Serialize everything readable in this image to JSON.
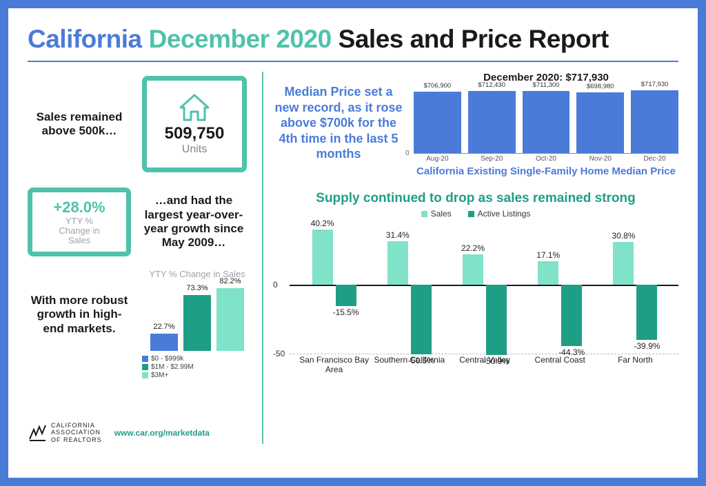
{
  "title": {
    "p1": "California",
    "p2": "December 2020",
    "p3": "Sales and Price Report",
    "c1": "#4a7bd9",
    "c2": "#4fc2ab",
    "c3": "#1a1a1a"
  },
  "left": {
    "sales_above_text": "Sales remained above 500k…",
    "units_value": "509,750",
    "units_label": "Units",
    "yty_pct": "+28.0%",
    "yty_label_1": "YTY %",
    "yty_label_2": "Change in",
    "yty_label_3": "Sales",
    "largest_growth_text": "…and had the largest year-over-year growth since May 2009…",
    "robust_text": "With more robust growth in high-end markets.",
    "yty_chart": {
      "title": "YTY % Change in Sales",
      "categories": [
        "$0 - $999k",
        "$1M - $2.99M",
        "$3M+"
      ],
      "values": [
        22.7,
        73.3,
        82.2
      ],
      "colors": [
        "#4a7bd9",
        "#1f9e86",
        "#7fe2c9"
      ],
      "max": 90
    },
    "url": "www.car.org/marketdata",
    "org_l1": "CALIFORNIA",
    "org_l2": "ASSOCIATION",
    "org_l3": "OF REALTORS"
  },
  "median": {
    "text": "Median Price set a new record, as it rose above $700k for the 4th time in the last 5 months",
    "header": "December 2020: $717,930",
    "subtitle": "California Existing Single-Family Home Median Price",
    "months": [
      "Aug-20",
      "Sep-20",
      "Oct-20",
      "Nov-20",
      "Dec-20"
    ],
    "values_num": [
      706900,
      712430,
      711300,
      698980,
      717930
    ],
    "values_lbl": [
      "$706,900",
      "$712,430",
      "$711,300",
      "$698,980",
      "$717,930"
    ],
    "color": "#4a7bd9",
    "ymax": 760000
  },
  "supply": {
    "title": "Supply continued to drop as sales remained strong",
    "legend": {
      "sales": "Sales",
      "listings": "Active Listings",
      "sales_color": "#7fe2c9",
      "listings_color": "#1f9e86"
    },
    "regions": [
      "San Francisco Bay Area",
      "Southern California",
      "Central Valley",
      "Central Coast",
      "Far North"
    ],
    "sales": [
      40.2,
      31.4,
      22.2,
      17.1,
      30.8
    ],
    "listings": [
      -15.5,
      -50.5,
      -50.9,
      -44.3,
      -39.9
    ],
    "ymin": -55,
    "ymax": 45,
    "yticks": [
      0,
      -50
    ]
  }
}
